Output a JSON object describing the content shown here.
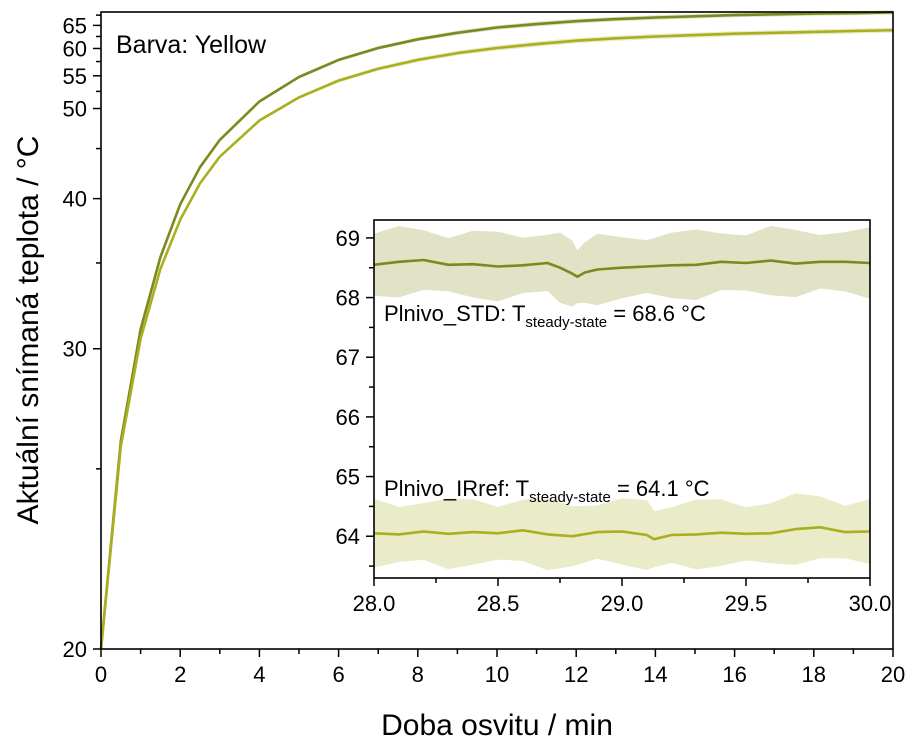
{
  "chart_data": [
    {
      "type": "line",
      "panel": "main",
      "annotation": "Barva: Yellow",
      "xlabel": "Doba osvitu / min",
      "ylabel": "Aktuální snímaná teplota / °C",
      "xlim": [
        0,
        20
      ],
      "ylim": [
        20,
        68.3
      ],
      "y_scale": "reciprocal",
      "xticks": [
        "0",
        "2",
        "4",
        "6",
        "8",
        "10",
        "12",
        "14",
        "16",
        "18",
        "20"
      ],
      "yticks": [
        "20",
        "30",
        "40",
        "50",
        "55",
        "60",
        "65"
      ],
      "series": [
        {
          "color": "#7b8a1e",
          "band_color": "#e2e2c6",
          "x": [
            0,
            0.5,
            1,
            1.5,
            2,
            2.5,
            3,
            4,
            5,
            6,
            7,
            8,
            9,
            10,
            11,
            12,
            13,
            14,
            15,
            16,
            17,
            18,
            19,
            20
          ],
          "y": [
            20,
            26,
            31,
            35.4,
            39.5,
            43,
            46,
            51,
            54.8,
            57.8,
            60.1,
            61.9,
            63.3,
            64.5,
            65.3,
            66.0,
            66.5,
            66.9,
            67.2,
            67.5,
            67.7,
            67.9,
            68.0,
            68.2
          ]
        },
        {
          "color": "#aaaf1f",
          "band_color": "#e9ebc9",
          "x": [
            0,
            0.5,
            1,
            1.5,
            2,
            2.5,
            3,
            4,
            5,
            6,
            7,
            8,
            9,
            10,
            11,
            12,
            13,
            14,
            15,
            16,
            17,
            18,
            19,
            20
          ],
          "y": [
            20,
            25.8,
            30.5,
            34.6,
            38.2,
            41.4,
            44.1,
            48.4,
            51.6,
            54.2,
            56.2,
            57.8,
            59.1,
            60.1,
            60.9,
            61.6,
            62.1,
            62.5,
            62.8,
            63.1,
            63.3,
            63.5,
            63.7,
            63.9
          ]
        }
      ]
    },
    {
      "type": "line",
      "panel": "inset",
      "xlim": [
        28.0,
        30.0
      ],
      "ylim": [
        63.3,
        69.3
      ],
      "xticks": [
        "28.0",
        "28.5",
        "29.0",
        "29.5",
        "30.0"
      ],
      "yticks": [
        "64",
        "65",
        "66",
        "67",
        "68",
        "69"
      ],
      "labels": [
        {
          "prefix": "Plnivo_STD: T",
          "sub": "steady-state",
          "suffix": " = 68.6 °C"
        },
        {
          "prefix": "Plnivo_IRref: T",
          "sub": "steady-state",
          "suffix": " = 64.1 °C"
        }
      ],
      "series": [
        {
          "color": "#7b8a1e",
          "band_color": "#e2e2c6",
          "band_half_width": 0.52,
          "x": [
            28.0,
            28.1,
            28.2,
            28.3,
            28.4,
            28.5,
            28.6,
            28.7,
            28.75,
            28.8,
            28.82,
            28.85,
            28.9,
            29.0,
            29.1,
            29.2,
            29.3,
            29.4,
            29.5,
            29.6,
            29.7,
            29.8,
            29.9,
            30.0
          ],
          "y": [
            68.55,
            68.6,
            68.63,
            68.55,
            68.56,
            68.52,
            68.54,
            68.58,
            68.5,
            68.4,
            68.35,
            68.42,
            68.47,
            68.5,
            68.52,
            68.54,
            68.55,
            68.6,
            68.58,
            68.62,
            68.57,
            68.6,
            68.6,
            68.58
          ]
        },
        {
          "color": "#aaaf1f",
          "band_color": "#e9ebc9",
          "band_half_width": 0.52,
          "x": [
            28.0,
            28.1,
            28.2,
            28.3,
            28.4,
            28.5,
            28.6,
            28.7,
            28.8,
            28.9,
            29.0,
            29.1,
            29.13,
            29.2,
            29.3,
            29.4,
            29.5,
            29.6,
            29.7,
            29.8,
            29.9,
            30.0
          ],
          "y": [
            64.05,
            64.03,
            64.08,
            64.04,
            64.07,
            64.05,
            64.1,
            64.03,
            64.0,
            64.07,
            64.08,
            64.02,
            63.95,
            64.02,
            64.03,
            64.06,
            64.04,
            64.05,
            64.12,
            64.15,
            64.07,
            64.08
          ]
        }
      ]
    }
  ]
}
